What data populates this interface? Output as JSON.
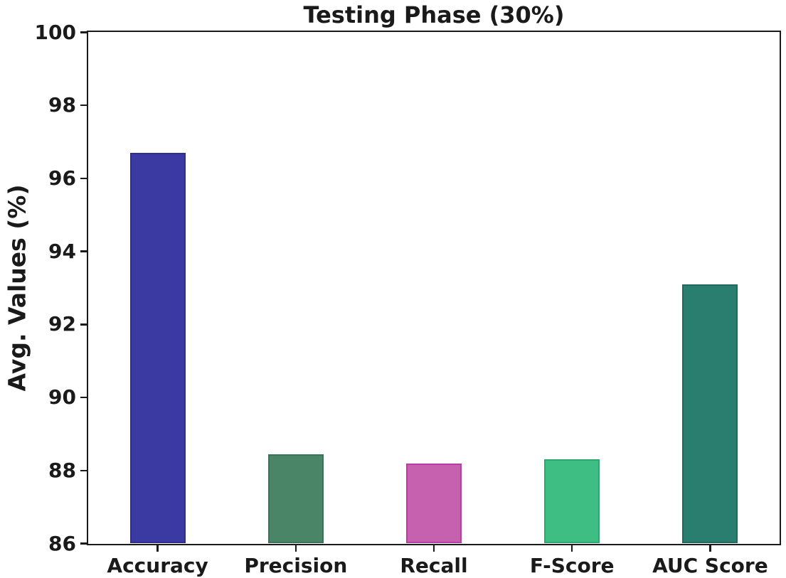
{
  "chart_data": {
    "type": "bar",
    "title": "Testing Phase (30%)",
    "xlabel": "",
    "ylabel": "Avg. Values (%)",
    "categories": [
      "Accuracy",
      "Precision",
      "Recall",
      "F-Score",
      "AUC Score"
    ],
    "values": [
      96.7,
      88.45,
      88.2,
      88.3,
      93.1
    ],
    "bar_fill_colors": [
      "#3a3aa2",
      "#4a8567",
      "#c661af",
      "#3ebe82",
      "#2a7e70"
    ],
    "bar_edge_colors": [
      "#2e2e8e",
      "#3c7257",
      "#b83ba6",
      "#2aa86e",
      "#21695e"
    ],
    "ylim": [
      86,
      100
    ],
    "yticks": [
      86,
      88,
      90,
      92,
      94,
      96,
      98,
      100
    ],
    "grid": false,
    "legend": null,
    "axis_color": "#1a1a1a",
    "background_color": "#ffffff"
  }
}
